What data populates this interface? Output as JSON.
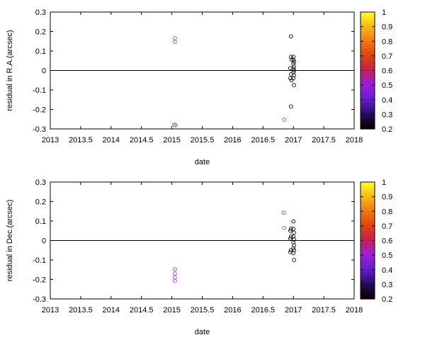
{
  "chart_data": [
    {
      "type": "scatter",
      "xlabel": "date",
      "ylabel": "residual in R.A.(arcsec)",
      "xlim": [
        2013,
        2018
      ],
      "ylim": [
        -0.3,
        0.3
      ],
      "x_ticks": [
        "2013",
        "2013.5",
        "2014",
        "2014.5",
        "2015",
        "2015.5",
        "2016",
        "2016.5",
        "2017",
        "2017.5",
        "2018"
      ],
      "y_ticks": [
        "0.3",
        "0.2",
        "0.1",
        "0",
        "-0.1",
        "-0.2",
        "-0.3"
      ],
      "zero_line": true,
      "grid": false,
      "colorbar": {
        "range": [
          0.2,
          1
        ],
        "ticks": [
          "1",
          "0.9",
          "0.8",
          "0.7",
          "0.6",
          "0.5",
          "0.4",
          "0.3",
          "0.2"
        ],
        "palette": [
          "#000000",
          "#2a0a5a",
          "#6020c8",
          "#9a1ee0",
          "#c0205a",
          "#e04010",
          "#f07a10",
          "#f8b818",
          "#ffff20"
        ],
        "placement": "right"
      },
      "points": [
        {
          "x": 2015.05,
          "y": 0.165,
          "c": 0.45
        },
        {
          "x": 2015.05,
          "y": 0.148,
          "c": 0.45
        },
        {
          "x": 2015.04,
          "y": -0.278,
          "c": 0.42
        },
        {
          "x": 2015.06,
          "y": -0.281,
          "c": 0.4
        },
        {
          "x": 2016.85,
          "y": -0.253,
          "c": 0.45
        },
        {
          "x": 2016.96,
          "y": 0.175,
          "c": 0.2
        },
        {
          "x": 2016.96,
          "y": 0.07,
          "c": 0.2
        },
        {
          "x": 2016.97,
          "y": 0.055,
          "c": 0.2
        },
        {
          "x": 2016.95,
          "y": 0.012,
          "c": 0.2
        },
        {
          "x": 2016.96,
          "y": -0.02,
          "c": 0.2
        },
        {
          "x": 2016.95,
          "y": -0.04,
          "c": 0.2
        },
        {
          "x": 2016.97,
          "y": -0.05,
          "c": 0.2
        },
        {
          "x": 2016.96,
          "y": -0.185,
          "c": 0.2
        },
        {
          "x": 2017.0,
          "y": 0.07,
          "c": 0.2
        },
        {
          "x": 2017.0,
          "y": 0.055,
          "c": 0.2
        },
        {
          "x": 2017.01,
          "y": 0.045,
          "c": 0.2
        },
        {
          "x": 2017.0,
          "y": 0.035,
          "c": 0.2
        },
        {
          "x": 2017.01,
          "y": 0.02,
          "c": 0.2
        },
        {
          "x": 2017.0,
          "y": 0.01,
          "c": 0.2
        },
        {
          "x": 2017.01,
          "y": 0.0,
          "c": 0.2
        },
        {
          "x": 2017.0,
          "y": -0.01,
          "c": 0.2
        },
        {
          "x": 2017.01,
          "y": -0.025,
          "c": 0.2
        },
        {
          "x": 2017.0,
          "y": -0.04,
          "c": 0.2
        },
        {
          "x": 2017.01,
          "y": -0.075,
          "c": 0.2
        }
      ]
    },
    {
      "type": "scatter",
      "xlabel": "date",
      "ylabel": "residual in Dec.(arcsec)",
      "xlim": [
        2013,
        2018
      ],
      "ylim": [
        -0.3,
        0.3
      ],
      "x_ticks": [
        "2013",
        "2013.5",
        "2014",
        "2014.5",
        "2015",
        "2015.5",
        "2016",
        "2016.5",
        "2017",
        "2017.5",
        "2018"
      ],
      "y_ticks": [
        "0.3",
        "0.2",
        "0.1",
        "0",
        "-0.1",
        "-0.2",
        "-0.3"
      ],
      "zero_line": true,
      "grid": false,
      "colorbar": {
        "range": [
          0.2,
          1
        ],
        "ticks": [
          "1",
          "0.9",
          "0.8",
          "0.7",
          "0.6",
          "0.5",
          "0.4",
          "0.3",
          "0.2"
        ],
        "palette": [
          "#000000",
          "#2a0a5a",
          "#6020c8",
          "#9a1ee0",
          "#c0205a",
          "#e04010",
          "#f07a10",
          "#f8b818",
          "#ffff20"
        ],
        "placement": "right"
      },
      "points": [
        {
          "x": 2016.84,
          "y": 0.143,
          "c": 0.45
        },
        {
          "x": 2016.85,
          "y": 0.065,
          "c": 0.45
        },
        {
          "x": 2015.05,
          "y": -0.148,
          "c": 0.45
        },
        {
          "x": 2015.05,
          "y": -0.17,
          "c": 0.45
        },
        {
          "x": 2015.05,
          "y": -0.19,
          "c": 0.45
        },
        {
          "x": 2015.05,
          "y": -0.208,
          "c": 0.45
        },
        {
          "x": 2016.96,
          "y": 0.06,
          "c": 0.2
        },
        {
          "x": 2016.95,
          "y": 0.05,
          "c": 0.2
        },
        {
          "x": 2016.96,
          "y": 0.02,
          "c": 0.2
        },
        {
          "x": 2016.95,
          "y": 0.01,
          "c": 0.2
        },
        {
          "x": 2016.96,
          "y": -0.05,
          "c": 0.2
        },
        {
          "x": 2016.95,
          "y": -0.06,
          "c": 0.2
        },
        {
          "x": 2017.0,
          "y": 0.098,
          "c": 0.2
        },
        {
          "x": 2017.0,
          "y": 0.06,
          "c": 0.2
        },
        {
          "x": 2017.01,
          "y": 0.04,
          "c": 0.2
        },
        {
          "x": 2017.0,
          "y": 0.02,
          "c": 0.2
        },
        {
          "x": 2017.01,
          "y": 0.005,
          "c": 0.2
        },
        {
          "x": 2017.0,
          "y": -0.01,
          "c": 0.2
        },
        {
          "x": 2017.01,
          "y": -0.025,
          "c": 0.2
        },
        {
          "x": 2017.0,
          "y": -0.04,
          "c": 0.2
        },
        {
          "x": 2017.01,
          "y": -0.05,
          "c": 0.2
        },
        {
          "x": 2017.0,
          "y": -0.065,
          "c": 0.2
        },
        {
          "x": 2017.01,
          "y": -0.1,
          "c": 0.2
        }
      ]
    }
  ]
}
